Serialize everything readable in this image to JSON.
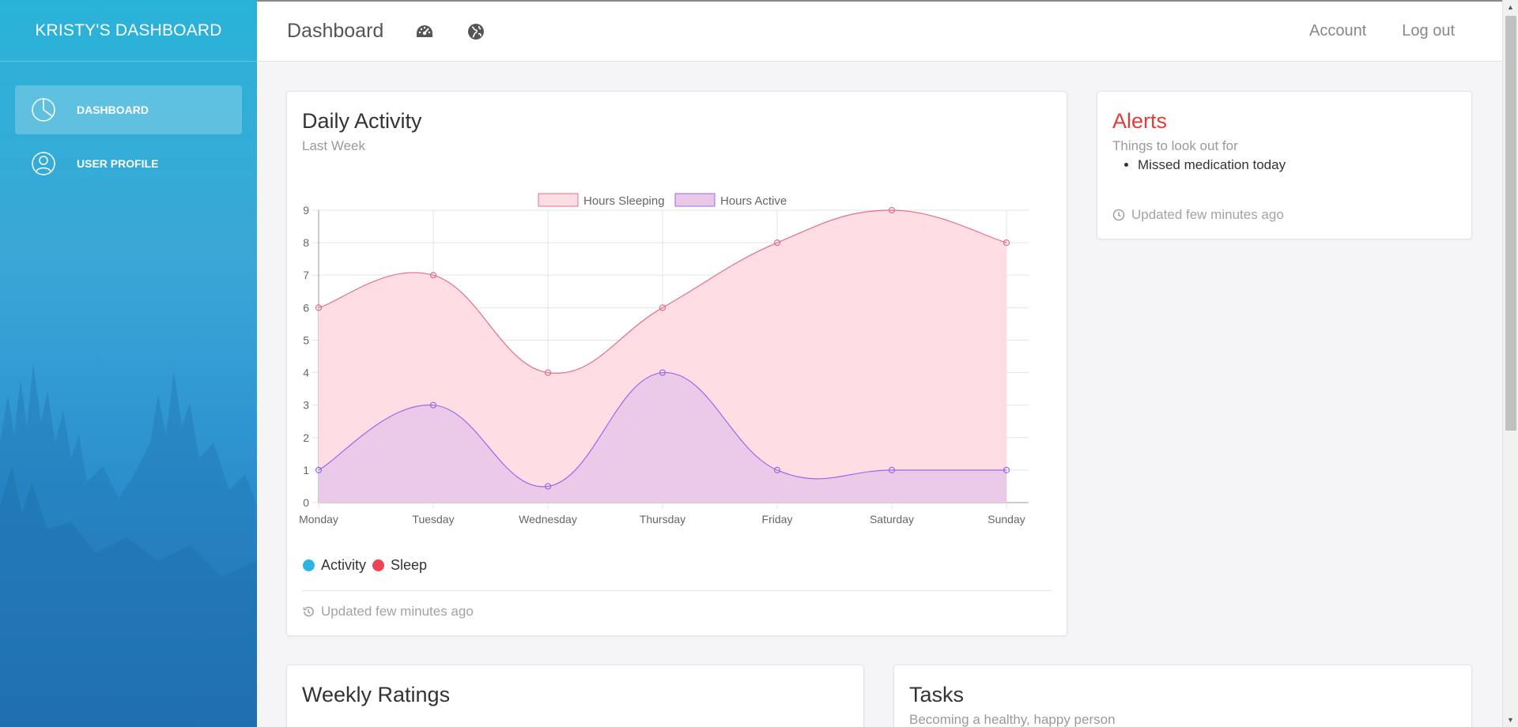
{
  "sidebar": {
    "brand": "KRISTY'S DASHBOARD",
    "items": [
      {
        "label": "DASHBOARD",
        "icon": "pie-chart-icon",
        "active": true
      },
      {
        "label": "USER PROFILE",
        "icon": "user-icon",
        "active": false
      }
    ]
  },
  "topbar": {
    "title": "Dashboard",
    "icons": [
      "speedometer-icon",
      "globe-icon"
    ],
    "account_label": "Account",
    "logout_label": "Log out"
  },
  "activity": {
    "title": "Daily Activity",
    "subtitle": "Last Week",
    "legend_activity": "Activity",
    "legend_sleep": "Sleep",
    "footer": "Updated few minutes ago"
  },
  "alerts": {
    "title": "Alerts",
    "subtitle": "Things to look out for",
    "items": [
      "Missed medication today"
    ],
    "footer": "Updated few minutes ago"
  },
  "ratings": {
    "title": "Weekly Ratings"
  },
  "tasks": {
    "title": "Tasks",
    "subtitle": "Becoming a healthy, happy person"
  },
  "colors": {
    "sleep_line": "#e26f8a",
    "sleep_fill": "#ffdde4",
    "active_line": "#9b6be6",
    "active_fill": "#e9c7e8",
    "activity_dot": "#2cb5e2",
    "sleep_dot": "#ef4256",
    "alert_red": "#e23c3c"
  },
  "chart_data": {
    "type": "area",
    "categories": [
      "Monday",
      "Tuesday",
      "Wednesday",
      "Thursday",
      "Friday",
      "Saturday",
      "Sunday"
    ],
    "series": [
      {
        "name": "Hours Sleeping",
        "values": [
          6,
          7,
          4,
          6,
          8,
          9,
          8
        ]
      },
      {
        "name": "Hours Active",
        "values": [
          1,
          3,
          0.5,
          4,
          1,
          1,
          1
        ]
      }
    ],
    "ylim": [
      0,
      9
    ],
    "yticks": [
      0,
      1,
      2,
      3,
      4,
      5,
      6,
      7,
      8,
      9
    ],
    "grid": true,
    "legend": "top-center"
  }
}
